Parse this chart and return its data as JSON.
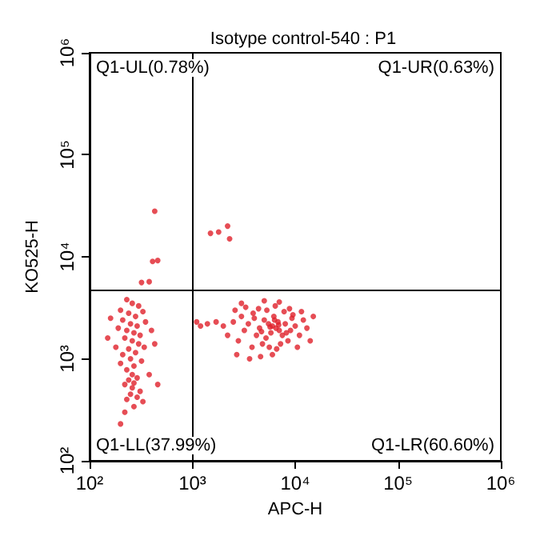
{
  "chart_data": {
    "type": "scatter",
    "title": "Isotype control-540 : P1",
    "xlabel": "APC-H",
    "ylabel": "KO525-H",
    "log": "xy",
    "grid": false,
    "marker": "circle",
    "xlim": [
      100,
      1000000
    ],
    "ylim": [
      100,
      1000000
    ],
    "xticks": [
      {
        "value": 100,
        "label": "10²"
      },
      {
        "value": 1000,
        "label": "10³"
      },
      {
        "value": 10000,
        "label": "10⁴"
      },
      {
        "value": 100000,
        "label": "10⁵"
      },
      {
        "value": 1000000,
        "label": "10⁶"
      }
    ],
    "yticks": [
      {
        "value": 100,
        "label": "10²"
      },
      {
        "value": 1000,
        "label": "10³"
      },
      {
        "value": 10000,
        "label": "10⁴"
      },
      {
        "value": 100000,
        "label": "10⁵"
      },
      {
        "value": 1000000,
        "label": "10⁶"
      }
    ],
    "ref_lines": [
      {
        "axis": "x",
        "value": 1000,
        "color": "#000000"
      },
      {
        "axis": "y",
        "value": 4800,
        "color": "#000000"
      }
    ],
    "annotations": [
      "Q1-UL(0.78%)",
      "Q1-UR(0.63%)",
      "Q1-LL(37.99%)",
      "Q1-LR(60.60%)"
    ],
    "series": [
      {
        "color": "#e0202a",
        "x": [
          230,
          260,
          300,
          200,
          240,
          280,
          330,
          210,
          250,
          290,
          350,
          190,
          230,
          270,
          310,
          400,
          220,
          260,
          300,
          180,
          240,
          340,
          280,
          210,
          250,
          320,
          200,
          270,
          230,
          260,
          290,
          240,
          270,
          220,
          260,
          310,
          250,
          290,
          230,
          330,
          270,
          220,
          160,
          430,
          150,
          380,
          460,
          200,
          430,
          2200,
          1500,
          1800,
          2300,
          410,
          460,
          320,
          380,
          6000,
          5500,
          6500,
          7000,
          5000,
          5800,
          6800,
          4500,
          7500,
          8000,
          5200,
          6200,
          4000,
          9000,
          3500,
          4200,
          10000,
          3000,
          3200,
          2500,
          2800,
          11000,
          12000,
          8500,
          7200,
          5600,
          4800,
          6600,
          3800,
          9500,
          7800,
          5300,
          4400,
          6400,
          3300,
          2600,
          8800,
          13000,
          15000,
          14000,
          2000,
          1700,
          1400,
          2200,
          2700,
          3600,
          4600,
          6000,
          10500,
          11500,
          7000,
          5000,
          3000,
          6300,
          5700,
          6900,
          4700,
          8200,
          3900,
          9300,
          1100,
          1200
        ],
        "values": [
          3800,
          3500,
          3300,
          3000,
          2800,
          2600,
          2900,
          2400,
          2200,
          2100,
          2300,
          2000,
          1900,
          1800,
          1700,
          1900,
          1600,
          1500,
          1400,
          1300,
          1250,
          1300,
          1150,
          1100,
          1000,
          950,
          900,
          850,
          780,
          700,
          650,
          620,
          580,
          560,
          520,
          480,
          450,
          420,
          400,
          380,
          340,
          300,
          2500,
          1400,
          1600,
          700,
          560,
          230,
          28000,
          20000,
          17000,
          17500,
          15000,
          9000,
          9200,
          5600,
          5700,
          2100,
          2200,
          2000,
          1900,
          2400,
          1800,
          2300,
          2000,
          1700,
          2200,
          1600,
          2600,
          2500,
          1900,
          2200,
          1700,
          2100,
          2600,
          1900,
          2300,
          1500,
          1700,
          2400,
          1500,
          1400,
          1300,
          1400,
          1250,
          1300,
          2700,
          2900,
          3000,
          3100,
          3300,
          3200,
          3000,
          3100,
          2000,
          2600,
          1500,
          2100,
          2300,
          2200,
          1700,
          1100,
          1000,
          1050,
          1100,
          1300,
          2900,
          3600,
          3700,
          3500,
          2400,
          2050,
          2150,
          1850,
          1800,
          2800,
          2500,
          2300,
          2100
        ]
      }
    ]
  }
}
